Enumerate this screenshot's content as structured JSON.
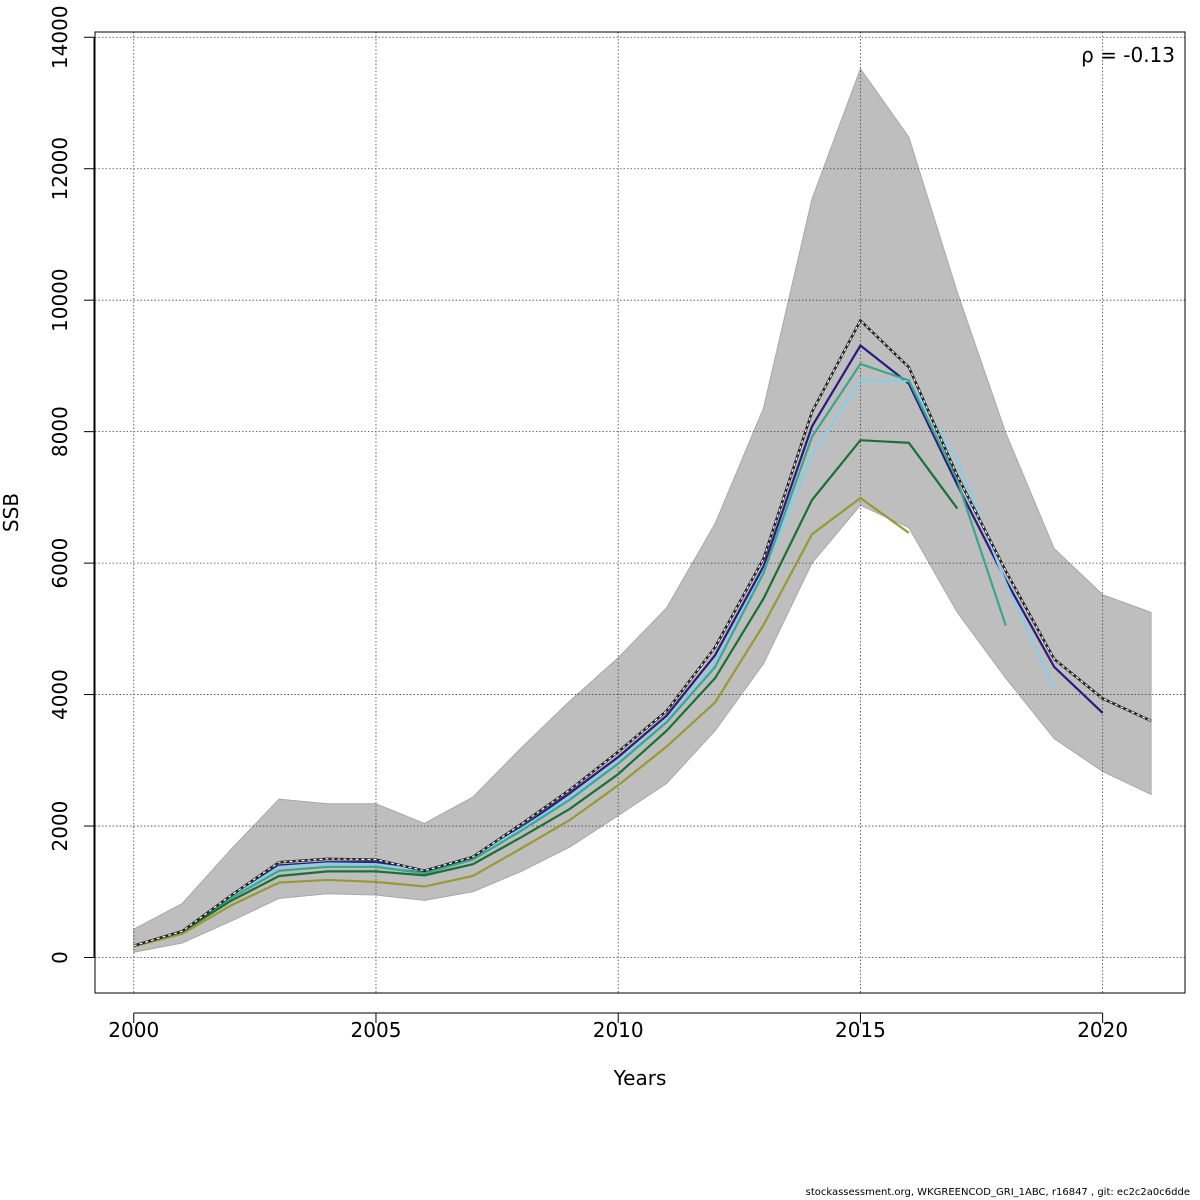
{
  "chart_data": {
    "type": "line",
    "title": "",
    "xlabel": "Years",
    "ylabel": "SSB",
    "xlim": [
      1999.2,
      2021.7
    ],
    "ylim": [
      -540,
      14080
    ],
    "x_ticks": [
      2000,
      2005,
      2010,
      2015,
      2020
    ],
    "y_ticks": [
      0,
      2000,
      4000,
      6000,
      8000,
      10000,
      12000,
      14000
    ],
    "grid": true,
    "annotation": "ρ = -0.13",
    "confidence_band": {
      "x": [
        2000,
        2001,
        2002,
        2003,
        2004,
        2005,
        2006,
        2007,
        2008,
        2009,
        2010,
        2011,
        2012,
        2013,
        2014,
        2015,
        2016,
        2017,
        2018,
        2019,
        2020,
        2021
      ],
      "lower": [
        80,
        220,
        550,
        900,
        970,
        950,
        870,
        1000,
        1310,
        1680,
        2160,
        2650,
        3450,
        4470,
        6000,
        6880,
        6540,
        5250,
        4250,
        3330,
        2830,
        2480
      ],
      "upper": [
        430,
        820,
        1640,
        2410,
        2340,
        2340,
        2040,
        2440,
        3190,
        3900,
        4560,
        5320,
        6600,
        8360,
        11540,
        13520,
        12480,
        10120,
        7980,
        6220,
        5520,
        5250
      ],
      "color": "#bebebe"
    },
    "series": [
      {
        "x": [
          2000,
          2001,
          2002,
          2003,
          2004,
          2005,
          2006,
          2007,
          2008,
          2009,
          2010,
          2011,
          2012,
          2013,
          2014,
          2015,
          2016,
          2017,
          2018,
          2019,
          2020,
          2021
        ],
        "values": [
          180,
          400,
          940,
          1450,
          1500,
          1490,
          1320,
          1530,
          2030,
          2550,
          3130,
          3750,
          4720,
          6070,
          8300,
          9690,
          8980,
          7330,
          5880,
          4540,
          3940,
          3600
        ],
        "color": "#222222",
        "dashed": true
      },
      {
        "x": [
          2000,
          2001,
          2002,
          2003,
          2004,
          2005,
          2006,
          2007,
          2008,
          2009,
          2010,
          2011,
          2012,
          2013,
          2014,
          2015,
          2016,
          2017,
          2018,
          2019,
          2020
        ],
        "values": [
          180,
          400,
          920,
          1400,
          1450,
          1450,
          1300,
          1520,
          1980,
          2500,
          3050,
          3680,
          4600,
          5950,
          8080,
          9310,
          8730,
          7190,
          5740,
          4420,
          3720
        ],
        "color": "#2a1a80",
        "dashed": false
      },
      {
        "x": [
          2000,
          2001,
          2002,
          2003,
          2004,
          2005,
          2006,
          2007,
          2008,
          2009,
          2010,
          2011,
          2012,
          2013,
          2014,
          2015,
          2016,
          2017,
          2018,
          2019
        ],
        "values": [
          180,
          400,
          910,
          1380,
          1430,
          1420,
          1320,
          1530,
          1960,
          2440,
          2980,
          3600,
          4480,
          5880,
          7640,
          8780,
          8770,
          7560,
          5700,
          4090
        ],
        "color": "#87ceeb",
        "dashed": false
      },
      {
        "x": [
          2000,
          2001,
          2002,
          2003,
          2004,
          2005,
          2006,
          2007,
          2008,
          2009,
          2010,
          2011,
          2012,
          2013,
          2014,
          2015,
          2016,
          2017,
          2018
        ],
        "values": [
          180,
          400,
          900,
          1320,
          1380,
          1380,
          1280,
          1490,
          1930,
          2400,
          2950,
          3580,
          4420,
          5850,
          7920,
          9030,
          8780,
          7260,
          5050
        ],
        "color": "#3aa68e",
        "dashed": false
      },
      {
        "x": [
          2000,
          2001,
          2002,
          2003,
          2004,
          2005,
          2006,
          2007,
          2008,
          2009,
          2010,
          2011,
          2012,
          2013,
          2014,
          2015,
          2016,
          2017
        ],
        "values": [
          180,
          390,
          860,
          1240,
          1310,
          1310,
          1250,
          1420,
          1830,
          2260,
          2790,
          3450,
          4250,
          5460,
          6960,
          7870,
          7830,
          6830
        ],
        "color": "#1a7032",
        "dashed": false
      },
      {
        "x": [
          2000,
          2001,
          2002,
          2003,
          2004,
          2005,
          2006,
          2007,
          2008,
          2009,
          2010,
          2011,
          2012,
          2013,
          2014,
          2015,
          2016
        ],
        "values": [
          170,
          360,
          790,
          1140,
          1180,
          1150,
          1080,
          1240,
          1660,
          2090,
          2620,
          3210,
          3880,
          5060,
          6440,
          6990,
          6460
        ],
        "color": "#999933",
        "dashed": false
      }
    ]
  },
  "footer": {
    "text": "stockassessment.org, WKGREENCOD_GRI_1ABC, r16847 , git: ec2c2a0c6dde"
  }
}
